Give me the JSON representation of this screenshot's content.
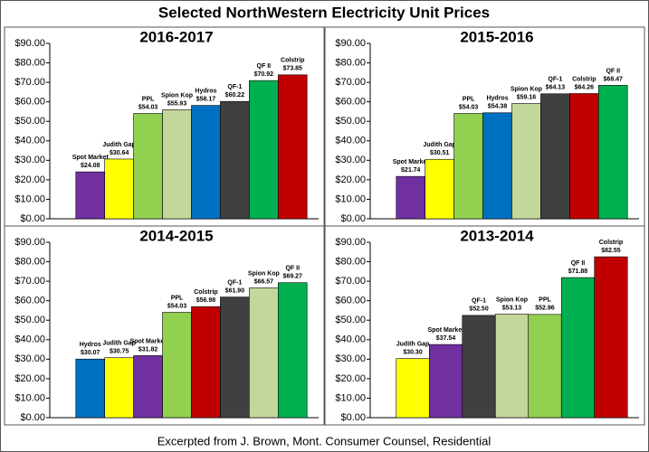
{
  "title": "Selected NorthWestern Electricity Unit Prices",
  "footnote": "Excerpted from J. Brown, Mont. Consumer Counsel, Residential",
  "chart_data": [
    {
      "type": "bar",
      "title": "2016-2017",
      "categories": [
        "Spot Market",
        "Judith Gap",
        "PPL",
        "Spion Kop",
        "Hydros",
        "QF-1",
        "QF II",
        "Colstrip"
      ],
      "values": [
        24.08,
        30.64,
        54.03,
        55.93,
        58.17,
        60.22,
        70.92,
        73.85
      ],
      "value_labels": [
        "$24.08",
        "$30.64",
        "$54.03",
        "$55.93",
        "$58.17",
        "$60.22",
        "$70.92",
        "$73.85"
      ],
      "colors": [
        "#7030a0",
        "#ffff00",
        "#92d050",
        "#c4d79b",
        "#0070c0",
        "#404040",
        "#00b050",
        "#c00000"
      ],
      "ylim": [
        0,
        90
      ],
      "yticks": [
        {
          "value": 0,
          "label": "$0.00"
        },
        {
          "value": 10,
          "label": "$10.00"
        },
        {
          "value": 20,
          "label": "$20.00"
        },
        {
          "value": 30,
          "label": "$30.00"
        },
        {
          "value": 40,
          "label": "$40.00"
        },
        {
          "value": 50,
          "label": "$50.00"
        },
        {
          "value": 60,
          "label": "$60.00"
        },
        {
          "value": 70,
          "label": "$70.00"
        },
        {
          "value": 80,
          "label": "$80.00"
        },
        {
          "value": 90,
          "label": "$90.00"
        }
      ]
    },
    {
      "type": "bar",
      "title": "2015-2016",
      "categories": [
        "Spot Market",
        "Judith Gap",
        "PPL",
        "Hydros",
        "Spion Kop",
        "QF-1",
        "Colstrip",
        "QF II"
      ],
      "values": [
        21.74,
        30.51,
        54.03,
        54.38,
        59.16,
        64.13,
        64.26,
        68.47
      ],
      "value_labels": [
        "$21.74",
        "$30.51",
        "$54.03",
        "$54.38",
        "$59.16",
        "$64.13",
        "$64.26",
        "$68.47"
      ],
      "colors": [
        "#7030a0",
        "#ffff00",
        "#92d050",
        "#0070c0",
        "#c4d79b",
        "#404040",
        "#c00000",
        "#00b050"
      ],
      "ylim": [
        0,
        90
      ],
      "yticks": [
        {
          "value": 0,
          "label": "$0.00"
        },
        {
          "value": 10,
          "label": "$10.00"
        },
        {
          "value": 20,
          "label": "$20.00"
        },
        {
          "value": 30,
          "label": "$30.00"
        },
        {
          "value": 40,
          "label": "$40.00"
        },
        {
          "value": 50,
          "label": "$50.00"
        },
        {
          "value": 60,
          "label": "$60.00"
        },
        {
          "value": 70,
          "label": "$70.00"
        },
        {
          "value": 80,
          "label": "$80.00"
        },
        {
          "value": 90,
          "label": "$90.00"
        }
      ]
    },
    {
      "type": "bar",
      "title": "2014-2015",
      "categories": [
        "Hydros",
        "Judith Gap",
        "Spot Market",
        "PPL",
        "Colstrip",
        "QF-1",
        "Spion Kop",
        "QF II"
      ],
      "values": [
        30.07,
        30.75,
        31.82,
        54.03,
        56.98,
        61.9,
        66.57,
        69.27
      ],
      "value_labels": [
        "$30.07",
        "$30.75",
        "$31.82",
        "$54.03",
        "$56.98",
        "$61.90",
        "$66.57",
        "$69.27"
      ],
      "colors": [
        "#0070c0",
        "#ffff00",
        "#7030a0",
        "#92d050",
        "#c00000",
        "#404040",
        "#c4d79b",
        "#00b050"
      ],
      "ylim": [
        0,
        90
      ],
      "yticks": [
        {
          "value": 0,
          "label": "$0.00"
        },
        {
          "value": 10,
          "label": "$10.00"
        },
        {
          "value": 20,
          "label": "$20.00"
        },
        {
          "value": 30,
          "label": "$30.00"
        },
        {
          "value": 40,
          "label": "$40.00"
        },
        {
          "value": 50,
          "label": "$50.00"
        },
        {
          "value": 60,
          "label": "$60.00"
        },
        {
          "value": 70,
          "label": "$70.00"
        },
        {
          "value": 80,
          "label": "$80.00"
        },
        {
          "value": 90,
          "label": "$90.00"
        }
      ]
    },
    {
      "type": "bar",
      "title": "2013-2014",
      "categories": [
        "Judith Gap",
        "Spot Market",
        "QF-1",
        "Spion Kop",
        "PPL",
        "QF II",
        "Colstrip"
      ],
      "values": [
        30.3,
        37.54,
        52.5,
        53.13,
        52.96,
        71.88,
        82.55
      ],
      "value_labels": [
        "$30.30",
        "$37.54",
        "$52.50",
        "$53.13",
        "$52.96",
        "$71.88",
        "$82.55"
      ],
      "colors": [
        "#ffff00",
        "#7030a0",
        "#404040",
        "#c4d79b",
        "#92d050",
        "#00b050",
        "#c00000"
      ],
      "ylim": [
        0,
        90
      ],
      "yticks": [
        {
          "value": 0,
          "label": "$0.00"
        },
        {
          "value": 10,
          "label": "$10.00"
        },
        {
          "value": 20,
          "label": "$20.00"
        },
        {
          "value": 30,
          "label": "$30.00"
        },
        {
          "value": 40,
          "label": "$40.00"
        },
        {
          "value": 50,
          "label": "$50.00"
        },
        {
          "value": 60,
          "label": "$60.00"
        },
        {
          "value": 70,
          "label": "$70.00"
        },
        {
          "value": 80,
          "label": "$80.00"
        },
        {
          "value": 90,
          "label": "$90.00"
        }
      ]
    }
  ]
}
